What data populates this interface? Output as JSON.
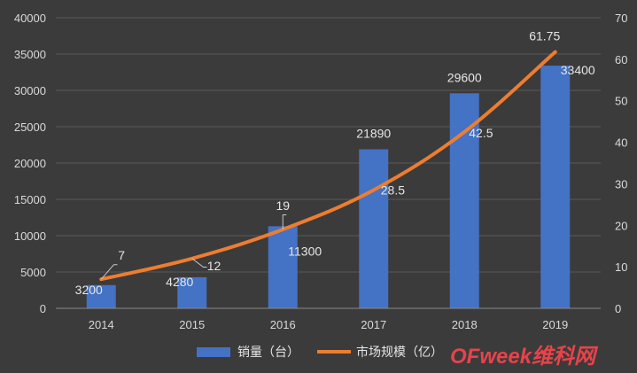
{
  "chart_data": {
    "type": "bar",
    "categories": [
      "2014",
      "2015",
      "2016",
      "2017",
      "2018",
      "2019"
    ],
    "series": [
      {
        "name": "销量（台）",
        "type": "bar",
        "axis": "left",
        "values": [
          3200,
          4280,
          11300,
          21890,
          29600,
          33400
        ],
        "color": "#4472c4"
      },
      {
        "name": "市场规模（亿）",
        "type": "line",
        "axis": "right",
        "values": [
          7,
          12,
          19,
          28.5,
          42.5,
          61.75
        ],
        "color": "#ed7d31"
      }
    ],
    "y_left": {
      "min": 0,
      "max": 40000,
      "step": 5000,
      "ticks": [
        "0",
        "5000",
        "10000",
        "15000",
        "20000",
        "25000",
        "30000",
        "35000",
        "40000"
      ]
    },
    "y_right": {
      "min": 0,
      "max": 70,
      "step": 10,
      "ticks": [
        "0",
        "10",
        "20",
        "30",
        "40",
        "50",
        "60",
        "70"
      ]
    },
    "bar_labels": [
      "3200",
      "4280",
      "11300",
      "21890",
      "29600",
      "33400"
    ],
    "line_labels": [
      "7",
      "12",
      "19",
      "28.5",
      "42.5",
      "61.75"
    ],
    "grid": true,
    "legend_position": "bottom",
    "title": "",
    "xlabel": "",
    "ylabel": ""
  },
  "watermark": {
    "part1": "OFweek",
    "part2": "维科网"
  }
}
